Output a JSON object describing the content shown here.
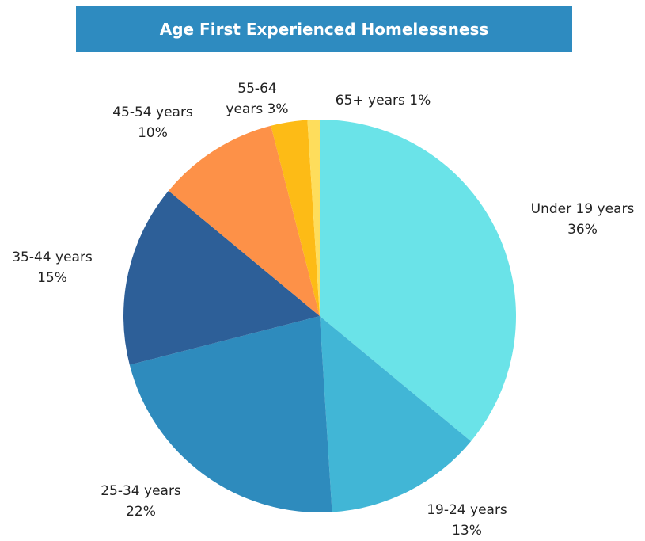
{
  "chart_data": {
    "type": "pie",
    "title": "Age First Experienced Homelessness",
    "categories": [
      "Under 19 years",
      "19-24 years",
      "25-34 years",
      "35-44 years",
      "45-54 years",
      "55-64 years",
      "65+ years"
    ],
    "values": [
      36,
      13,
      22,
      15,
      10,
      3,
      1
    ],
    "value_labels": [
      "36%",
      "13%",
      "22%",
      "15%",
      "10%",
      "3%",
      "1%"
    ],
    "colors": [
      "#6ae3e8",
      "#41b6d6",
      "#2e8bbd",
      "#2d5f98",
      "#fd9148",
      "#fdbb16",
      "#fedd5c"
    ]
  }
}
